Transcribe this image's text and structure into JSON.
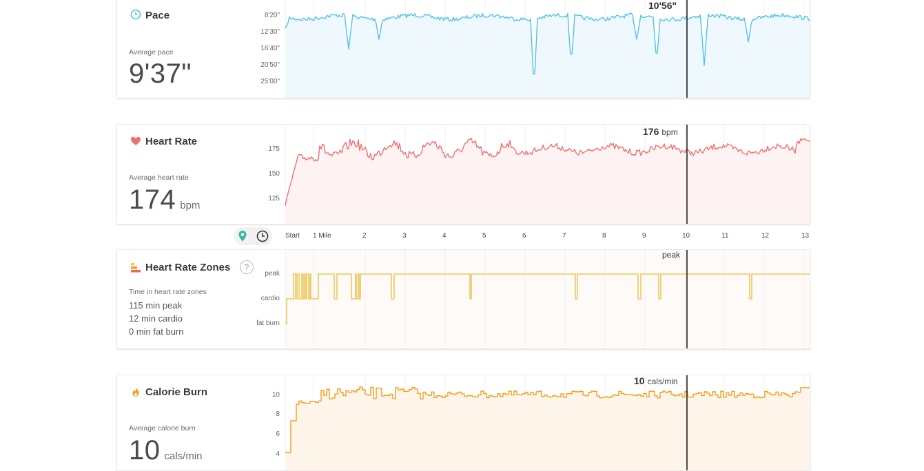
{
  "pace": {
    "title": "Pace",
    "caption": "Average pace",
    "value": "9'37\"",
    "y_ticks": [
      "8'20\"",
      "12'30\"",
      "16'40\"",
      "20'50\"",
      "25'00\""
    ],
    "cursor_value": "10'56\"",
    "color": "#4fc3ea",
    "fill": "#eef8fd"
  },
  "heart_rate": {
    "title": "Heart Rate",
    "caption": "Average heart rate",
    "value": "174",
    "unit": "bpm",
    "y_ticks": [
      "175",
      "150",
      "125"
    ],
    "cursor_value": "176",
    "cursor_unit": "bpm",
    "color": "#f07070",
    "fill": "#fef3f3"
  },
  "x_axis": {
    "ticks": [
      "Start",
      "1 Mile",
      "2",
      "3",
      "4",
      "5",
      "6",
      "7",
      "8",
      "9",
      "10",
      "11",
      "12",
      "13"
    ]
  },
  "toggle": {
    "distance_icon": "map-pin-icon",
    "time_icon": "clock-icon",
    "active": "distance"
  },
  "zones": {
    "title": "Heart Rate Zones",
    "help": "?",
    "caption": "Time in heart rate zones",
    "lines": [
      "115 min peak",
      "12 min cardio",
      "0 min fat burn"
    ],
    "y_ticks": [
      "peak",
      "cardio",
      "fat burn"
    ],
    "cursor_value": "peak",
    "color": "#ecc95a",
    "fill": "#fefaf8"
  },
  "calories": {
    "title": "Calorie Burn",
    "caption": "Average calorie burn",
    "value": "10",
    "unit": "cals/min",
    "y_ticks": [
      "10",
      "8",
      "6",
      "4"
    ],
    "cursor_value": "10",
    "cursor_unit": "cals/min",
    "color": "#f59c1a",
    "fill": "#fef5ea"
  }
}
